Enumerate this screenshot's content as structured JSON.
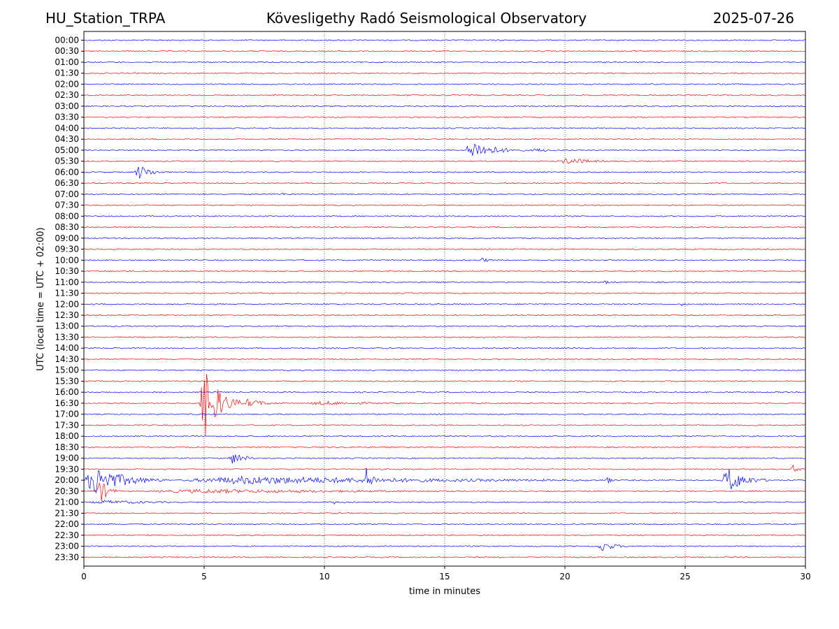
{
  "header": {
    "station": "HU_Station_TRPA",
    "observatory": "Kövesligethy Radó Seismological Observatory",
    "date": "2025-07-26"
  },
  "colors": {
    "blue": "#0000ff",
    "red": "#ff0000",
    "grid": "#000000"
  },
  "chart_data": {
    "type": "line",
    "title": "Kövesligethy Radó Seismological Observatory",
    "xlabel": "time in minutes",
    "ylabel": "UTC (local time = UTC + 02:00)",
    "xlim": [
      0,
      30
    ],
    "xticks": [
      "0",
      "5",
      "10",
      "15",
      "20",
      "25",
      "30"
    ],
    "xgrid": [
      5,
      10,
      15,
      20,
      25
    ],
    "rows": [
      "00:00",
      "00:30",
      "01:00",
      "01:30",
      "02:00",
      "02:30",
      "03:00",
      "03:30",
      "04:00",
      "04:30",
      "05:00",
      "05:30",
      "06:00",
      "06:30",
      "07:00",
      "07:30",
      "08:00",
      "08:30",
      "09:00",
      "09:30",
      "10:00",
      "10:30",
      "11:00",
      "11:30",
      "12:00",
      "12:30",
      "13:00",
      "13:30",
      "14:00",
      "14:30",
      "15:00",
      "15:30",
      "16:00",
      "16:30",
      "17:00",
      "17:30",
      "18:00",
      "18:30",
      "19:00",
      "19:30",
      "20:00",
      "20:30",
      "21:00",
      "21:30",
      "22:00",
      "22:30",
      "23:00",
      "23:30"
    ],
    "series_colors": [
      "blue",
      "red"
    ],
    "noise_level": 0.8,
    "events": [
      {
        "row": "05:00",
        "start_min": 15.8,
        "end_min": 18.5,
        "peak": 14
      },
      {
        "row": "05:00",
        "start_min": 18.5,
        "end_min": 21.0,
        "peak": 3
      },
      {
        "row": "05:30",
        "start_min": 19.7,
        "end_min": 23.0,
        "peak": 5
      },
      {
        "row": "06:00",
        "start_min": 2.1,
        "end_min": 3.6,
        "peak": 11
      },
      {
        "row": "06:00",
        "start_min": 14.6,
        "end_min": 14.9,
        "peak": 3
      },
      {
        "row": "07:00",
        "start_min": 8.0,
        "end_min": 10.0,
        "peak": 2
      },
      {
        "row": "10:00",
        "start_min": 16.4,
        "end_min": 17.5,
        "peak": 4
      },
      {
        "row": "11:00",
        "start_min": 21.5,
        "end_min": 23.0,
        "peak": 2.5
      },
      {
        "row": "12:00",
        "start_min": 24.8,
        "end_min": 25.2,
        "peak": 3
      },
      {
        "row": "16:30",
        "start_min": 4.8,
        "end_min": 6.5,
        "peak": 55
      },
      {
        "row": "16:30",
        "start_min": 6.5,
        "end_min": 9.0,
        "peak": 6
      },
      {
        "row": "16:30",
        "start_min": 9.0,
        "end_min": 16.5,
        "peak": 3
      },
      {
        "row": "19:00",
        "start_min": 6.0,
        "end_min": 7.5,
        "peak": 9
      },
      {
        "row": "19:30",
        "start_min": 29.4,
        "end_min": 30.0,
        "peak": 8
      },
      {
        "row": "20:00",
        "start_min": 0.0,
        "end_min": 3.5,
        "peak": 22
      },
      {
        "row": "20:00",
        "start_min": 3.5,
        "end_min": 30.0,
        "peak": 6
      },
      {
        "row": "20:00",
        "start_min": 11.6,
        "end_min": 12.5,
        "peak": 20
      },
      {
        "row": "20:00",
        "start_min": 26.5,
        "end_min": 28.5,
        "peak": 20
      },
      {
        "row": "20:00",
        "start_min": 21.7,
        "end_min": 22.0,
        "peak": 18
      },
      {
        "row": "20:30",
        "start_min": 0.5,
        "end_min": 1.5,
        "peak": 20
      },
      {
        "row": "20:30",
        "start_min": 1.5,
        "end_min": 30.0,
        "peak": 3
      },
      {
        "row": "21:00",
        "start_min": 0.0,
        "end_min": 7.5,
        "peak": 3
      },
      {
        "row": "21:00",
        "start_min": 10.4,
        "end_min": 10.6,
        "peak": 8
      },
      {
        "row": "23:00",
        "start_min": 21.3,
        "end_min": 23.0,
        "peak": 8
      }
    ]
  }
}
